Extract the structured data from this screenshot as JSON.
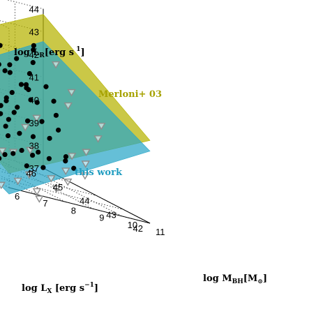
{
  "chart_data": {
    "type": "scatter3d",
    "zlabel": "log L_R [erg s^-1]",
    "xlabel": "log M_BH [M_⊙]",
    "ylabel": "log L_X [erg s^-1]",
    "zlim": [
      37,
      44
    ],
    "mlim": [
      6,
      11
    ],
    "xraylim": [
      42,
      46
    ],
    "z_ticks": [
      "37",
      "38",
      "39",
      "40",
      "41",
      "42",
      "43",
      "44"
    ],
    "m_ticks": [
      "6",
      "7",
      "8",
      "9",
      "10",
      "11"
    ],
    "x_ticks": [
      "42",
      "43",
      "44",
      "45",
      "46"
    ],
    "grid": true,
    "planes": [
      {
        "name": "Merloni+ 03",
        "color": "#b5b300",
        "label_color": "#a6a200",
        "a": 0.78,
        "b": 0.6,
        "c": 7.33
      },
      {
        "name": "this work",
        "color": "#2aa6c8",
        "label_color": "#1f9cc0",
        "a": 0.6,
        "b": 0.69,
        "c": 7.82
      }
    ],
    "detections": {
      "marker": "filled circle",
      "color": "#000000",
      "points": [
        [
          8.1,
          44.6,
          41.5
        ],
        [
          7.9,
          44.8,
          41.9
        ],
        [
          7.5,
          44.2,
          40.5
        ],
        [
          7.3,
          44.5,
          40.2
        ],
        [
          7.6,
          43.5,
          39.9
        ],
        [
          7.8,
          44.0,
          40.3
        ],
        [
          7.4,
          43.8,
          39.6
        ],
        [
          7.2,
          43.9,
          39.3
        ],
        [
          7.0,
          43.6,
          39.1
        ],
        [
          6.8,
          43.4,
          38.6
        ],
        [
          6.9,
          44.1,
          39.4
        ],
        [
          7.1,
          43.2,
          38.9
        ],
        [
          7.7,
          43.1,
          39.8
        ],
        [
          8.0,
          43.3,
          40.7
        ],
        [
          8.3,
          43.7,
          41.0
        ],
        [
          8.5,
          44.0,
          41.1
        ],
        [
          8.2,
          44.3,
          41.7
        ],
        [
          7.6,
          44.6,
          40.7
        ],
        [
          7.4,
          45.1,
          41.2
        ],
        [
          8.6,
          44.9,
          41.2
        ],
        [
          8.8,
          44.5,
          40.9
        ],
        [
          8.4,
          45.2,
          42.0
        ],
        [
          7.9,
          45.3,
          41.5
        ],
        [
          7.0,
          44.7,
          40.1
        ],
        [
          6.7,
          43.9,
          38.8
        ],
        [
          6.6,
          44.2,
          38.7
        ],
        [
          6.9,
          42.8,
          38.3
        ],
        [
          7.3,
          42.9,
          38.5
        ],
        [
          7.6,
          42.6,
          38.7
        ],
        [
          7.8,
          42.4,
          38.6
        ],
        [
          8.1,
          42.7,
          39.4
        ],
        [
          8.3,
          42.3,
          38.9
        ],
        [
          8.6,
          42.9,
          39.8
        ],
        [
          8.9,
          43.3,
          40.3
        ],
        [
          9.1,
          43.6,
          40.8
        ],
        [
          8.7,
          43.8,
          40.5
        ],
        [
          9.3,
          44.1,
          41.2
        ],
        [
          9.0,
          44.4,
          41.5
        ],
        [
          7.2,
          44.0,
          39.8
        ],
        [
          7.5,
          43.6,
          39.5
        ],
        [
          7.7,
          43.9,
          40.2
        ],
        [
          7.0,
          43.9,
          39.0
        ],
        [
          6.8,
          43.0,
          38.1
        ],
        [
          7.1,
          42.5,
          38.0
        ],
        [
          7.4,
          42.2,
          38.2
        ],
        [
          8.0,
          42.0,
          38.8
        ],
        [
          8.2,
          41.9,
          38.6
        ],
        [
          6.5,
          42.9,
          37.9
        ],
        [
          6.6,
          43.5,
          38.4
        ],
        [
          7.3,
          43.5,
          39.2
        ],
        [
          7.8,
          44.4,
          40.8
        ],
        [
          8.0,
          44.0,
          40.6
        ],
        [
          7.6,
          44.0,
          39.9
        ],
        [
          7.9,
          43.7,
          40.1
        ],
        [
          8.4,
          44.5,
          41.3
        ],
        [
          9.5,
          44.8,
          41.9
        ],
        [
          9.7,
          45.0,
          42.4
        ],
        [
          8.9,
          45.4,
          42.1
        ],
        [
          7.2,
          45.5,
          41.0
        ],
        [
          6.9,
          45.0,
          40.2
        ],
        [
          7.5,
          45.6,
          41.3
        ],
        [
          8.1,
          45.8,
          41.8
        ],
        [
          6.7,
          44.5,
          39.4
        ],
        [
          7.8,
          43.0,
          39.2
        ],
        [
          8.3,
          43.2,
          39.9
        ],
        [
          7.4,
          42.6,
          38.5
        ],
        [
          6.9,
          43.6,
          38.8
        ],
        [
          7.6,
          43.3,
          39.1
        ],
        [
          7.1,
          44.3,
          39.7
        ],
        [
          8.7,
          44.2,
          40.9
        ],
        [
          9.2,
          45.1,
          41.8
        ],
        [
          10.0,
          45.3,
          42.5
        ],
        [
          8.0,
          45.0,
          41.3
        ],
        [
          7.7,
          45.2,
          41.1
        ],
        [
          7.3,
          44.8,
          40.4
        ]
      ]
    },
    "upper_limits": {
      "marker": "open triangle (down)",
      "color": "#8c8c8c",
      "points": [
        [
          7.4,
          45.6,
          40.9
        ],
        [
          6.7,
          45.9,
          40.3
        ],
        [
          6.5,
          44.6,
          39.1
        ],
        [
          6.4,
          44.0,
          38.3
        ],
        [
          6.3,
          43.6,
          37.9
        ],
        [
          7.0,
          42.3,
          37.7
        ],
        [
          7.4,
          41.9,
          37.9
        ],
        [
          8.2,
          42.2,
          38.3
        ],
        [
          8.8,
          42.6,
          38.9
        ],
        [
          9.4,
          42.7,
          39.2
        ],
        [
          10.2,
          43.1,
          39.8
        ],
        [
          10.6,
          43.4,
          40.3
        ],
        [
          6.6,
          42.3,
          37.3
        ],
        [
          6.8,
          41.8,
          37.2
        ],
        [
          7.8,
          41.7,
          38.0
        ],
        [
          8.6,
          41.9,
          38.4
        ],
        [
          9.8,
          43.8,
          40.7
        ],
        [
          10.3,
          44.2,
          41.2
        ],
        [
          6.2,
          43.0,
          37.3
        ],
        [
          6.1,
          42.4,
          36.9
        ],
        [
          7.1,
          43.0,
          38.3
        ],
        [
          7.6,
          42.9,
          38.6
        ],
        [
          7.9,
          43.4,
          39.4
        ],
        [
          8.4,
          43.5,
          39.9
        ],
        [
          7.5,
          44.3,
          40.1
        ],
        [
          7.2,
          44.6,
          40.0
        ],
        [
          6.9,
          44.9,
          39.9
        ],
        [
          7.0,
          44.1,
          39.4
        ],
        [
          6.8,
          43.1,
          38.2
        ],
        [
          7.7,
          44.7,
          40.5
        ],
        [
          6.6,
          41.5,
          37.0
        ],
        [
          7.3,
          41.6,
          37.6
        ],
        [
          9.0,
          42.3,
          38.8
        ],
        [
          10.5,
          45.0,
          42.0
        ],
        [
          6.3,
          45.3,
          39.7
        ],
        [
          7.4,
          45.2,
          40.7
        ],
        [
          8.2,
          44.8,
          41.0
        ],
        [
          6.4,
          44.9,
          39.4
        ]
      ]
    }
  }
}
